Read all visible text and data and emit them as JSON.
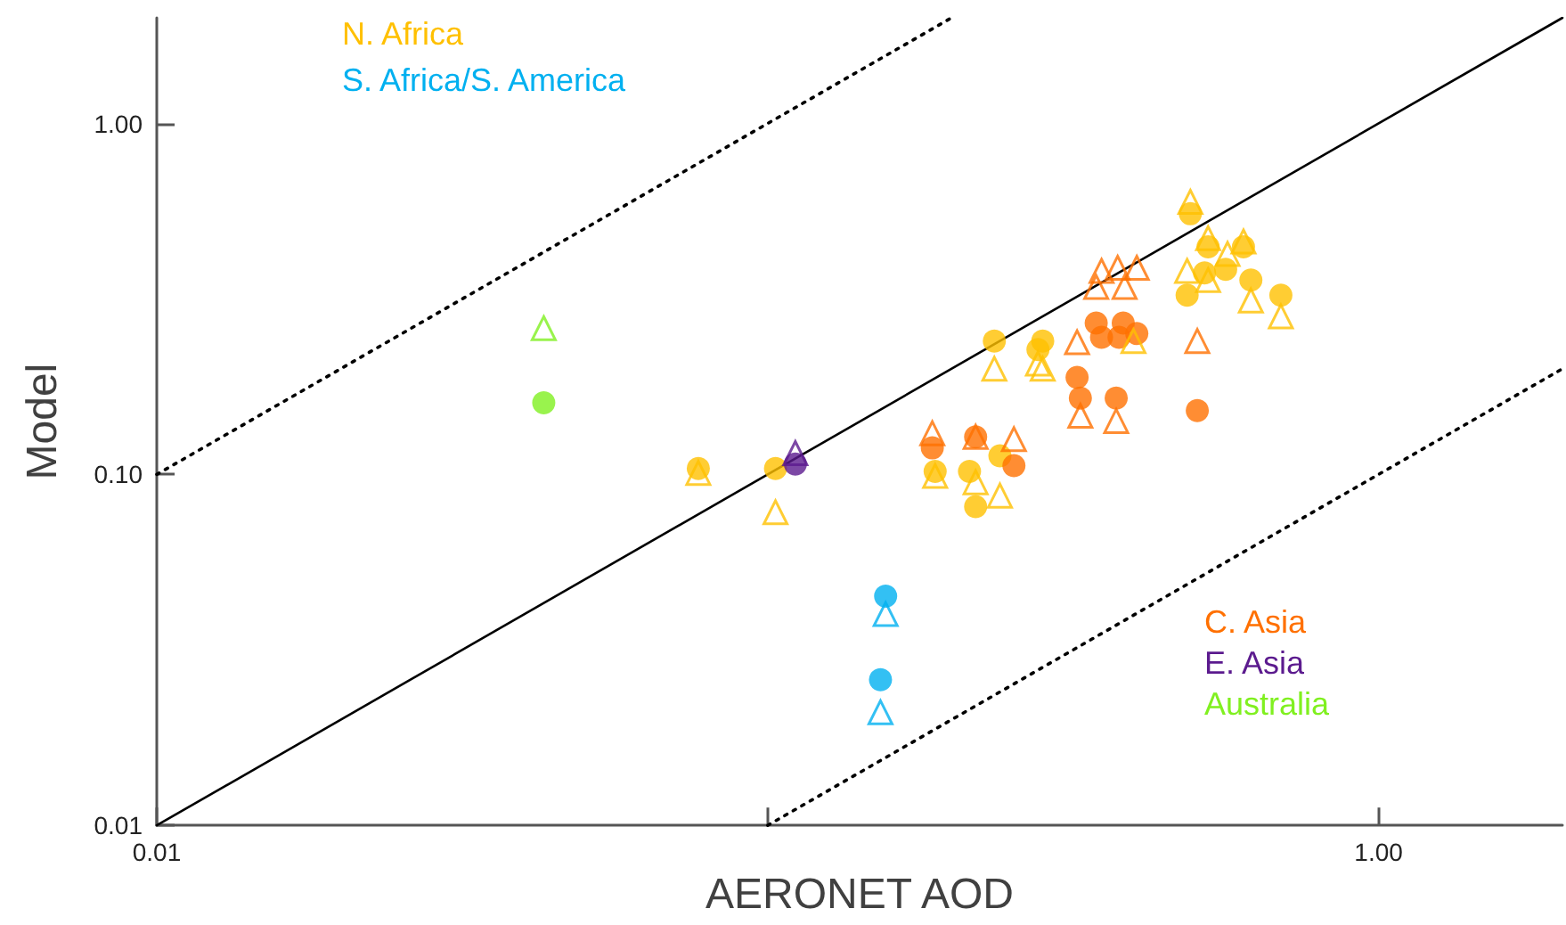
{
  "chart_data": {
    "type": "scatter",
    "xlabel": "AERONET AOD",
    "ylabel": "Model",
    "log": "xy",
    "grid": false,
    "legend": false,
    "xlim": [
      0.01,
      2
    ],
    "ylim": [
      0.01,
      2
    ],
    "xticks": [
      0.01,
      {
        "value": 0.1,
        "label": null
      },
      {
        "value": 1,
        "label": "1.00"
      }
    ],
    "yticks": [
      0.01,
      {
        "value": 0.1,
        "label": "0.10"
      },
      {
        "value": 1,
        "label": "1.00"
      }
    ],
    "series": [
      {
        "name": "N. Africa",
        "color": "#ffc000",
        "marker": "circle",
        "x": [
          0.077,
          0.103,
          0.188,
          0.214,
          0.219,
          0.24,
          0.235,
          0.282,
          0.277,
          0.492,
          0.526,
          0.601,
          0.562,
          0.519,
          0.502,
          0.486,
          0.618,
          0.692
        ],
        "values": [
          0.104,
          0.104,
          0.102,
          0.102,
          0.081,
          0.113,
          0.24,
          0.24,
          0.227,
          0.553,
          0.445,
          0.445,
          0.384,
          0.375,
          null,
          0.324,
          0.358,
          0.324
        ]
      },
      {
        "color": "#ffc000",
        "marker": "triangle",
        "x": [
          0.077,
          0.103,
          0.188,
          0.219,
          0.24,
          0.235,
          0.277,
          0.282,
          0.397,
          0.492,
          0.526,
          0.601,
          0.566,
          0.486,
          0.526,
          0.618,
          0.692
        ],
        "values": [
          0.101,
          0.078,
          0.099,
          0.095,
          0.087,
          0.2,
          0.207,
          0.2,
          0.24,
          0.598,
          0.471,
          0.461,
          0.425,
          0.38,
          0.358,
          0.313,
          0.282
        ]
      },
      {
        "name": "S. Africa/S. America",
        "color": "#00b0f0",
        "marker": "circle",
        "x": [
          0.156,
          0.153
        ],
        "values": [
          0.045,
          0.026
        ]
      },
      {
        "color": "#00b0f0",
        "marker": "triangle",
        "x": [
          0.156,
          0.153
        ],
        "values": [
          0.04,
          0.021
        ]
      },
      {
        "name": "C. Asia",
        "color": "#ff7000",
        "marker": "circle",
        "x": [
          0.186,
          0.219,
          0.253,
          0.345,
          0.352,
          0.382,
          0.376,
          0.402,
          0.321,
          0.325,
          0.372,
          0.505
        ],
        "values": [
          0.119,
          0.128,
          0.106,
          0.27,
          0.246,
          0.27,
          0.246,
          0.252,
          0.189,
          0.165,
          0.165,
          0.152
        ]
      },
      {
        "color": "#ff7000",
        "marker": "triangle",
        "x": [
          0.186,
          0.219,
          0.253,
          0.321,
          0.352,
          0.374,
          0.402,
          0.345,
          0.384,
          0.325,
          0.372,
          0.505
        ],
        "values": [
          0.131,
          0.128,
          0.126,
          0.238,
          0.38,
          0.388,
          0.388,
          0.342,
          0.342,
          0.147,
          0.142,
          0.24
        ]
      },
      {
        "name": "E. Asia",
        "color": "#5b1a8e",
        "marker": "circle",
        "x": [
          0.111
        ],
        "values": [
          0.107
        ]
      },
      {
        "color": "#5b1a8e",
        "marker": "triangle",
        "x": [
          0.111
        ],
        "values": [
          0.115
        ]
      },
      {
        "name": "Australia",
        "color": "#80f020",
        "marker": "circle",
        "x": [
          0.043
        ],
        "values": [
          0.16
        ]
      },
      {
        "color": "#80f020",
        "marker": "triangle",
        "x": [
          0.043
        ],
        "values": [
          0.261
        ]
      },
      {
        "type": "line",
        "color": "#000000",
        "line_style": "solid",
        "marker": "none",
        "x": [
          0.01,
          2
        ],
        "values": [
          0.01,
          2
        ]
      },
      {
        "type": "line",
        "color": "#000000",
        "line_style": "dotted",
        "marker": "none",
        "x": [
          0.01,
          0.2
        ],
        "values": [
          0.1,
          2
        ]
      },
      {
        "type": "line",
        "color": "#000000",
        "line_style": "dotted",
        "marker": "none",
        "x": [
          0.1,
          2
        ],
        "values": [
          0.01,
          0.2
        ]
      }
    ]
  }
}
